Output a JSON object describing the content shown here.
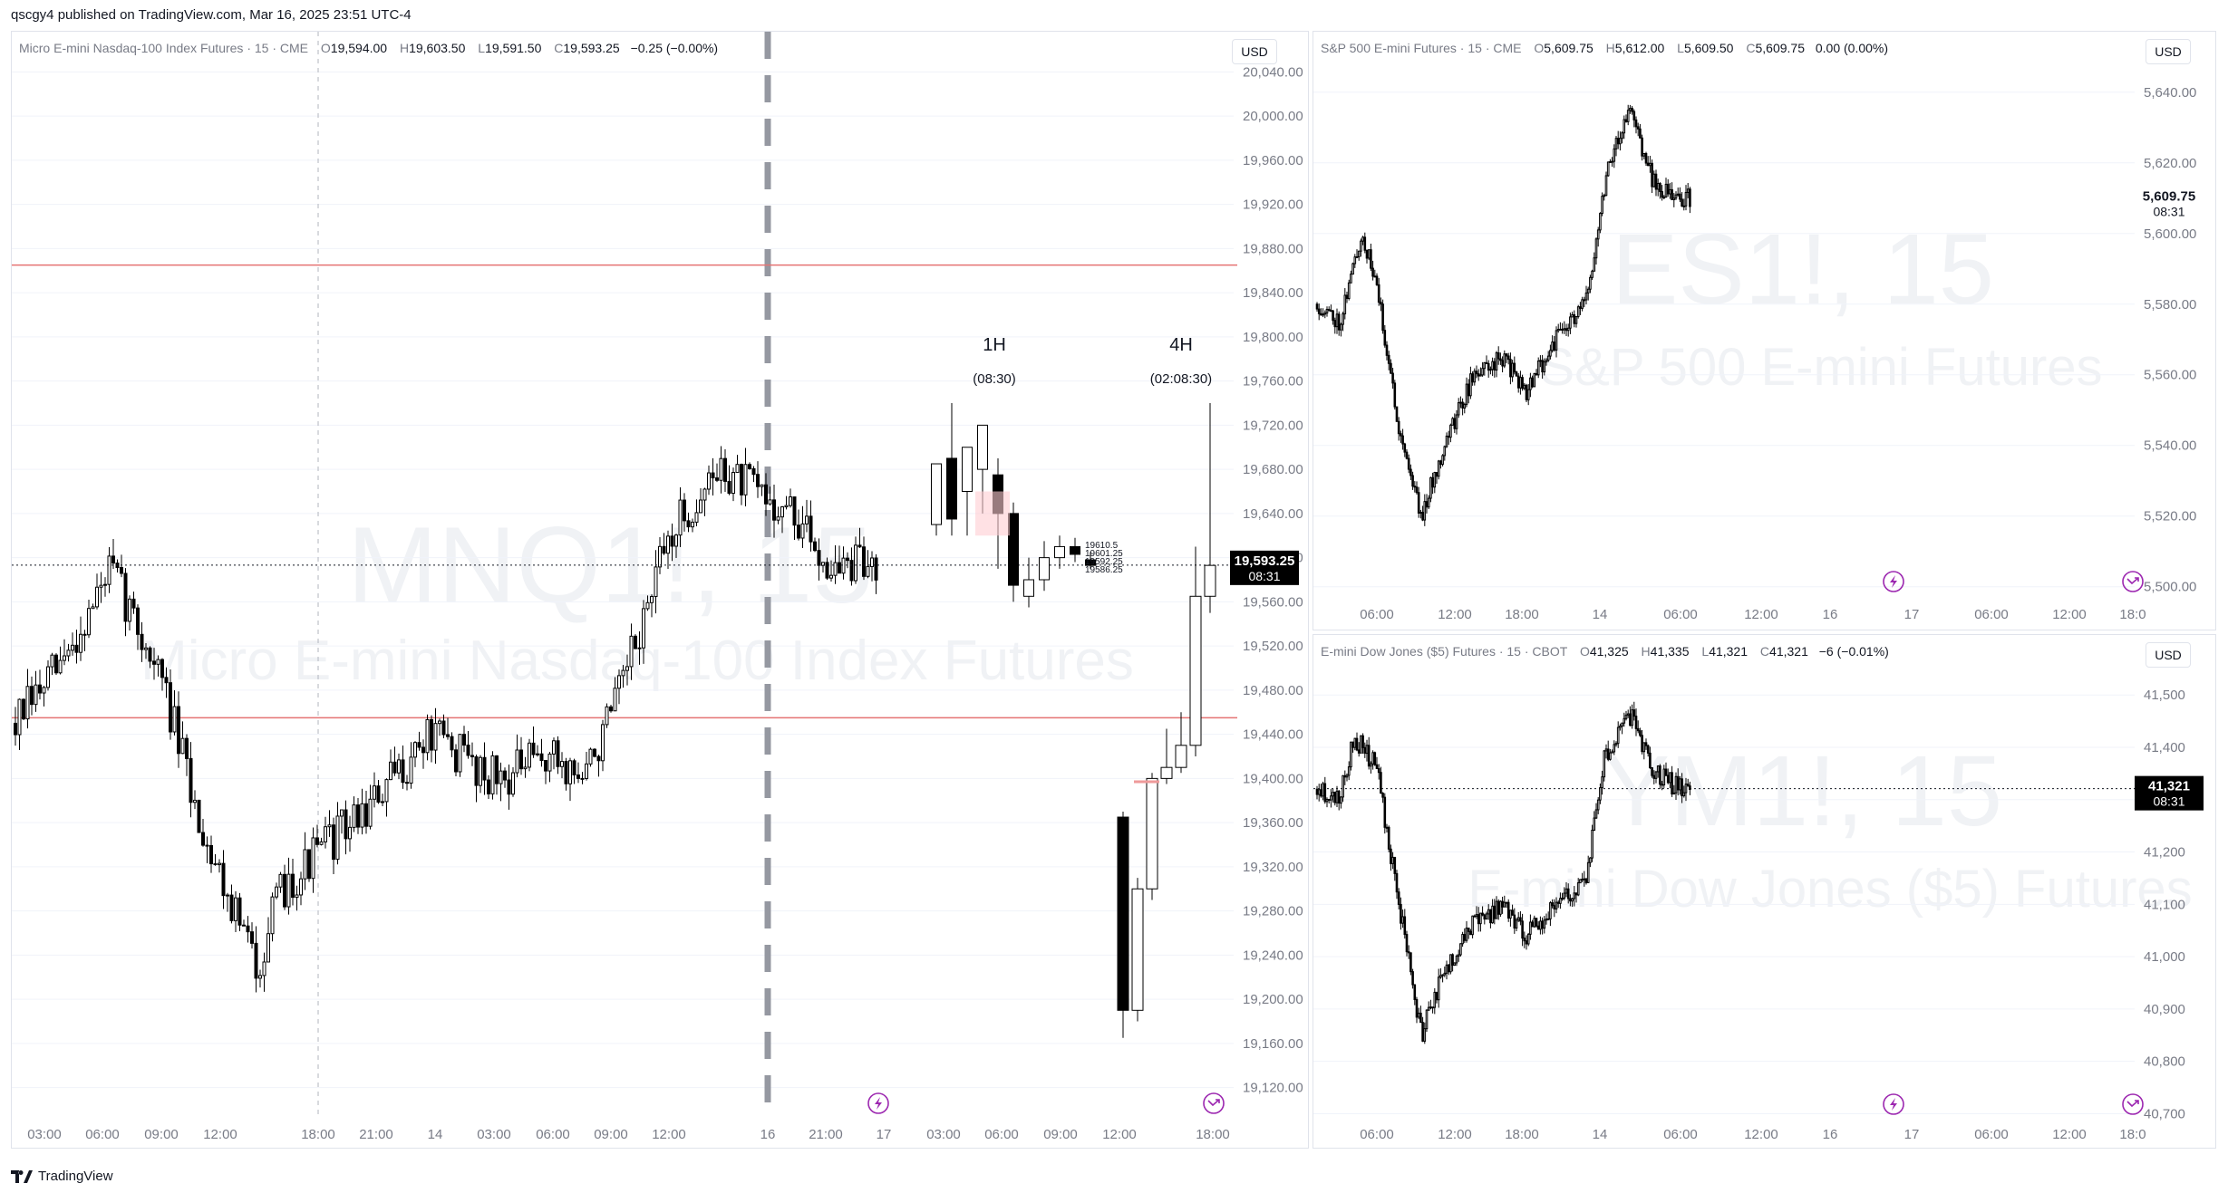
{
  "header": {
    "publisher_line": "qscgy4 published on TradingView.com, Mar 16, 2025 23:51 UTC-4"
  },
  "footer": {
    "brand": "TradingView"
  },
  "panels": [
    {
      "id": "mnq",
      "legend": {
        "title": "Micro E-mini Nasdaq-100 Index Futures · 15 · CME",
        "o": "19,594.00",
        "h": "19,603.50",
        "l": "19,591.50",
        "c": "19,593.25",
        "chg": "−0.25 (−0.00%)"
      },
      "currency": "USD",
      "watermark": {
        "symbol": "MNQ1!, 15",
        "name": "Micro E-mini Nasdaq-100 Index Futures"
      },
      "price_tag": {
        "value": "19,593.25",
        "countdown": "08:31"
      },
      "annotations": {
        "h1": "1H",
        "h1_timer": "(08:30)",
        "h4": "4H",
        "h4_timer": "(02:08:30)",
        "mini_levels": [
          "19610.5",
          "19601.25",
          "19592.25",
          "19586.25"
        ]
      }
    },
    {
      "id": "es",
      "legend": {
        "title": "S&P 500 E-mini Futures · 15 · CME",
        "o": "5,609.75",
        "h": "5,612.00",
        "l": "5,609.50",
        "c": "5,609.75",
        "chg": "0.00 (0.00%)"
      },
      "currency": "USD",
      "watermark": {
        "symbol": "ES1!, 15",
        "name": "S&P 500 E-mini Futures"
      },
      "price_tag": {
        "value": "5,609.75",
        "countdown": "08:31"
      }
    },
    {
      "id": "ym",
      "legend": {
        "title": "E-mini Dow Jones ($5) Futures · 15 · CBOT",
        "o": "41,325",
        "h": "41,335",
        "l": "41,321",
        "c": "41,321",
        "chg": "−6 (−0.01%)"
      },
      "currency": "USD",
      "watermark": {
        "symbol": "YM1!, 15",
        "name": "E-mini Dow Jones ($5) Futures"
      },
      "price_tag": {
        "value": "41,321",
        "countdown": "08:31"
      }
    }
  ],
  "chart_data": [
    {
      "type": "candlestick",
      "symbol": "MNQ1!",
      "ylim": [
        19100,
        20060
      ],
      "y_ticks": [
        "20,040.00",
        "20,000.00",
        "19,960.00",
        "19,920.00",
        "19,880.00",
        "19,840.00",
        "19,800.00",
        "19,760.00",
        "19,720.00",
        "19,680.00",
        "19,640.00",
        "19,600.00",
        "19,560.00",
        "19,520.00",
        "19,480.00",
        "19,440.00",
        "19,400.00",
        "19,360.00",
        "19,320.00",
        "19,280.00",
        "19,240.00",
        "19,200.00",
        "19,160.00",
        "19,120.00"
      ],
      "x_ticks": [
        "03:00",
        "06:00",
        "09:00",
        "12:00",
        "18:00",
        "21:00",
        "14",
        "03:00",
        "06:00",
        "09:00",
        "12:00",
        "16",
        "21:00",
        "17",
        "03:00",
        "06:00",
        "09:00",
        "12:00",
        "18:00"
      ],
      "levels": [
        19865,
        19455
      ],
      "current_price": 19593.25,
      "htf_1h": [
        {
          "o": 19630,
          "h": 19660,
          "l": 19620,
          "c": 19685
        },
        {
          "o": 19690,
          "h": 19740,
          "l": 19620,
          "c": 19635
        },
        {
          "o": 19660,
          "h": 19670,
          "l": 19620,
          "c": 19700
        },
        {
          "o": 19680,
          "h": 19710,
          "l": 19640,
          "c": 19720
        },
        {
          "o": 19675,
          "h": 19690,
          "l": 19590,
          "c": 19640
        },
        {
          "o": 19640,
          "h": 19650,
          "l": 19560,
          "c": 19575
        },
        {
          "o": 19565,
          "h": 19600,
          "l": 19555,
          "c": 19580
        },
        {
          "o": 19580,
          "h": 19615,
          "l": 19570,
          "c": 19600
        },
        {
          "o": 19600,
          "h": 19620,
          "l": 19590,
          "c": 19610
        },
        {
          "o": 19610,
          "h": 19618,
          "l": 19596,
          "c": 19603
        },
        {
          "o": 19598,
          "h": 19605,
          "l": 19590,
          "c": 19593
        }
      ],
      "htf_4h": [
        {
          "o": 19365,
          "h": 19370,
          "l": 19165,
          "c": 19190
        },
        {
          "o": 19190,
          "h": 19310,
          "l": 19180,
          "c": 19300
        },
        {
          "o": 19300,
          "h": 19405,
          "l": 19290,
          "c": 19400
        },
        {
          "o": 19400,
          "h": 19445,
          "l": 19395,
          "c": 19410
        },
        {
          "o": 19410,
          "h": 19460,
          "l": 19405,
          "c": 19430
        },
        {
          "o": 19430,
          "h": 19610,
          "l": 19420,
          "c": 19565
        },
        {
          "o": 19565,
          "h": 19740,
          "l": 19550,
          "c": 19593
        }
      ]
    },
    {
      "type": "candlestick",
      "symbol": "ES1!",
      "ylim": [
        5493,
        5652
      ],
      "y_ticks": [
        "5,640.00",
        "5,620.00",
        "5,600.00",
        "5,580.00",
        "5,560.00",
        "5,540.00",
        "5,520.00",
        "5,500.00"
      ],
      "x_ticks": [
        "06:00",
        "12:00",
        "18:00",
        "14",
        "06:00",
        "12:00",
        "16",
        "17",
        "06:00",
        "12:00",
        "18:0"
      ],
      "current_price": 5609.75
    },
    {
      "type": "candlestick",
      "symbol": "YM1!",
      "ylim": [
        40680,
        41580
      ],
      "y_ticks": [
        "41,500",
        "41,400",
        "41,300",
        "41,200",
        "41,100",
        "41,000",
        "40,900",
        "40,800",
        "40,700"
      ],
      "x_ticks": [
        "06:00",
        "12:00",
        "18:00",
        "14",
        "06:00",
        "12:00",
        "16",
        "17",
        "06:00",
        "12:00",
        "18:0"
      ],
      "current_price": 41321
    }
  ],
  "colors": {
    "up": "#ffffff",
    "down": "#000000",
    "wick": "#000000",
    "level": "#e57373",
    "accent": "#9c27b0",
    "grid": "#f0f3fa"
  },
  "icons": [
    "lightning-icon",
    "go-to-realtime-icon"
  ]
}
